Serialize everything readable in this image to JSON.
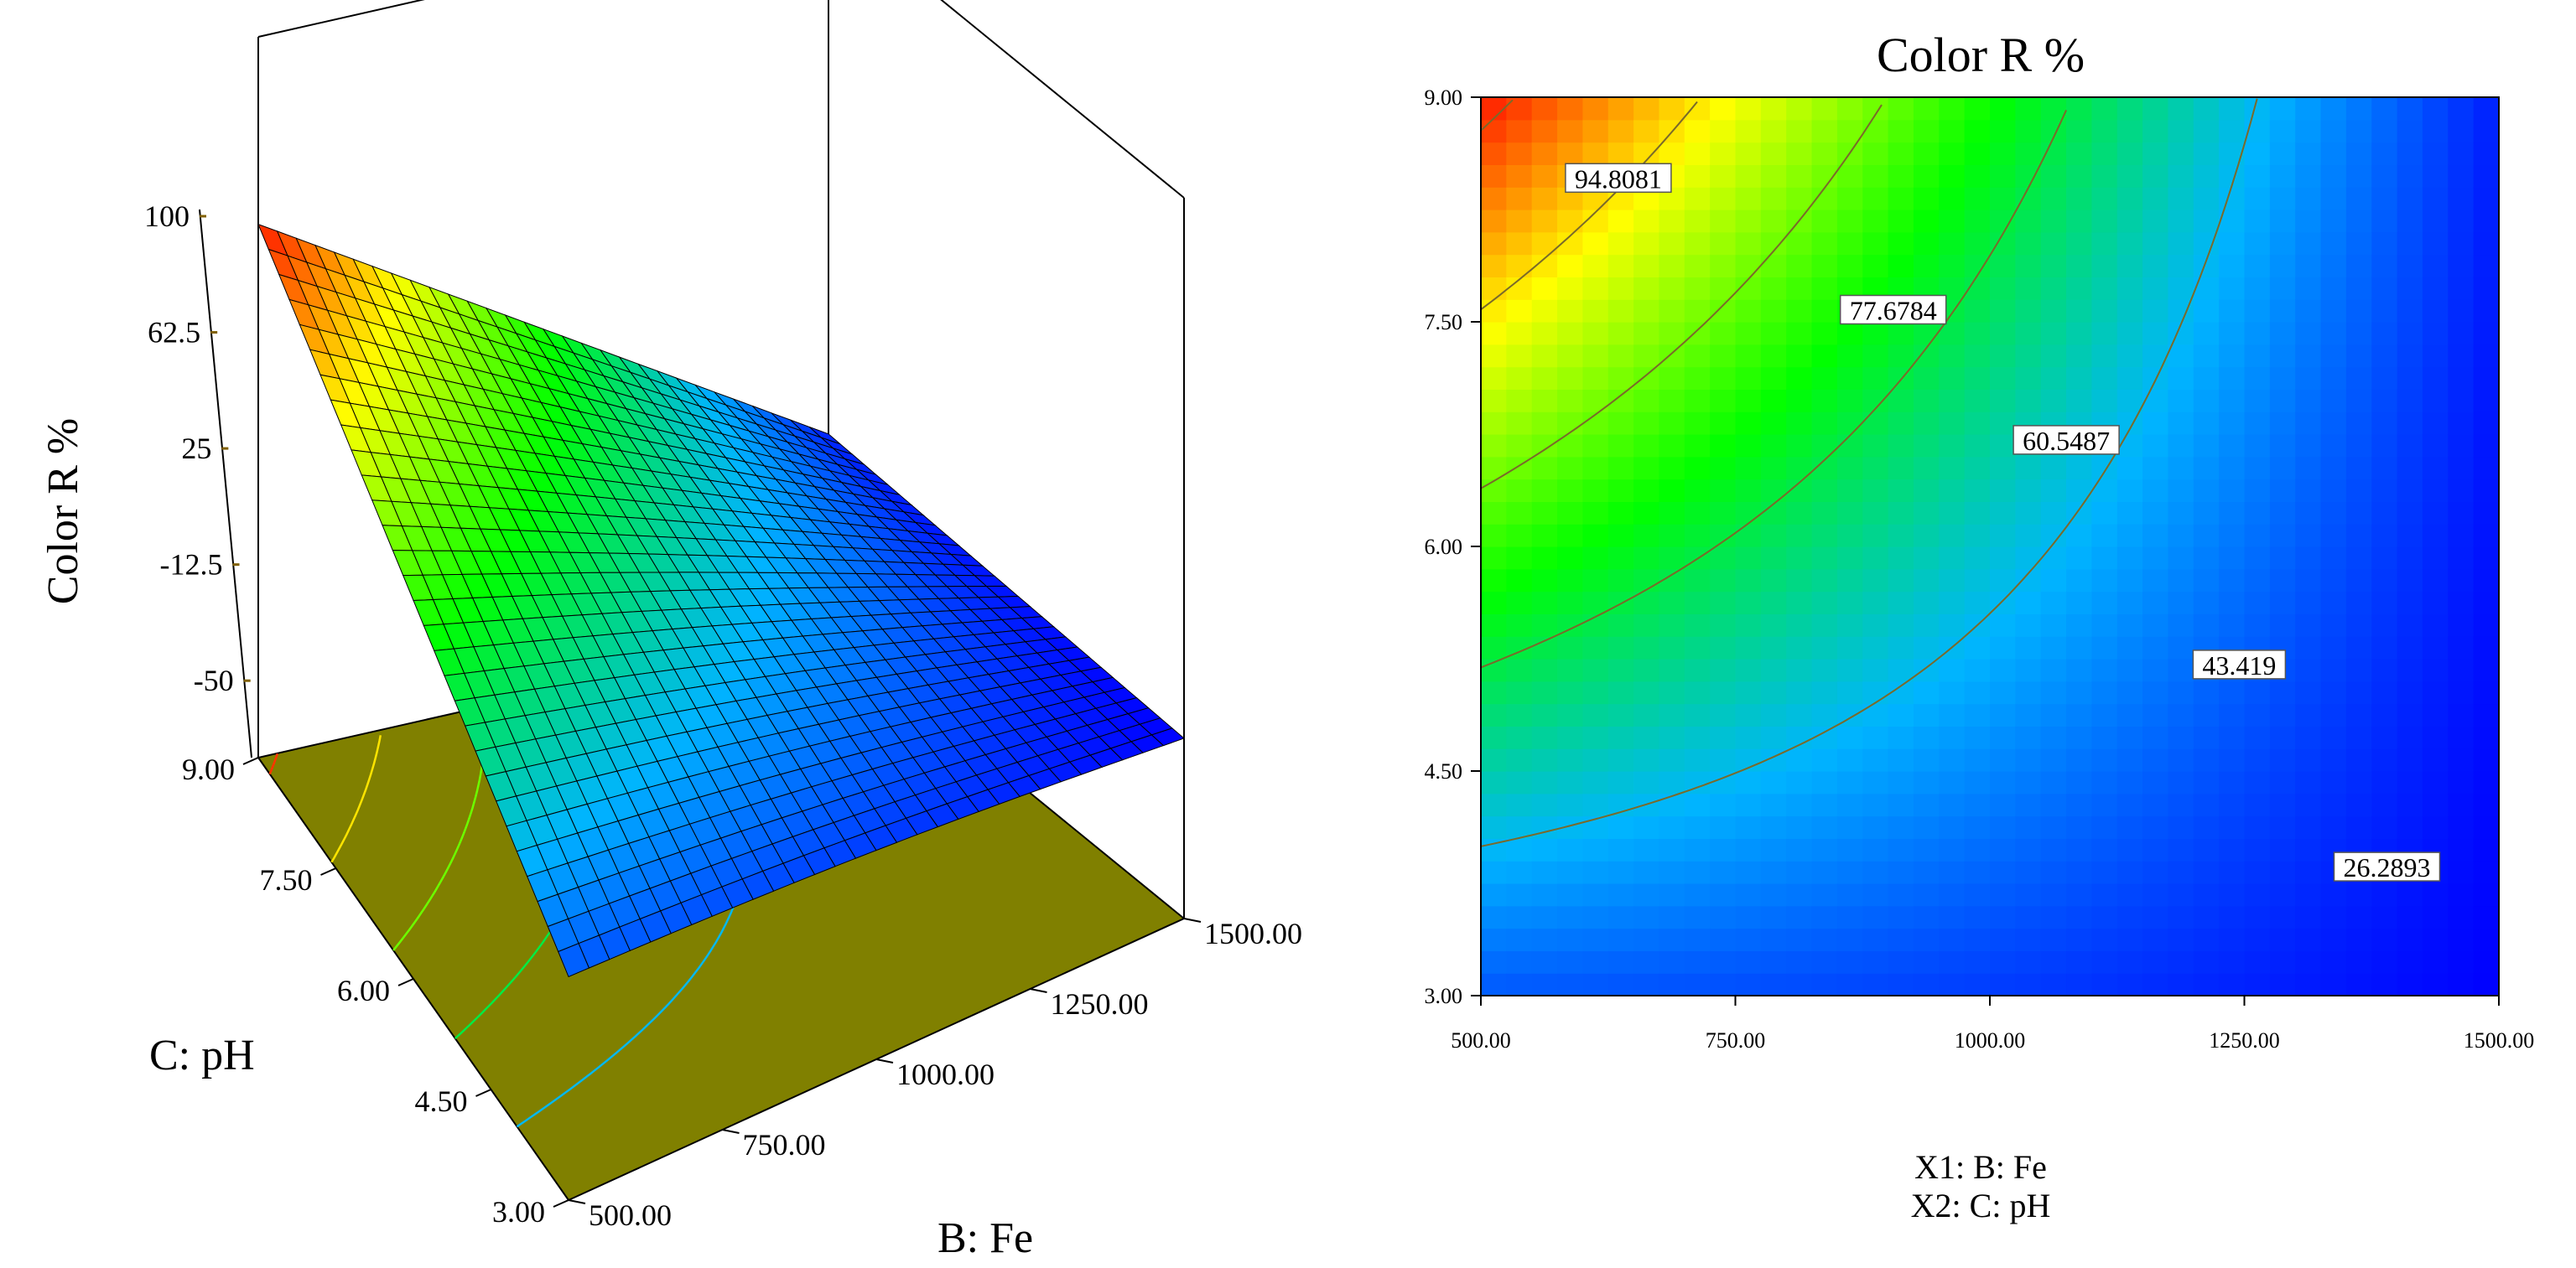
{
  "chart_data": [
    {
      "type": "surface",
      "zlabel": "Color R %",
      "xlabel": "B: Fe",
      "ylabel": "C: pH",
      "x_ticks": [
        "500.00",
        "750.00",
        "1000.00",
        "1250.00",
        "1500.00"
      ],
      "y_ticks": [
        "3.00",
        "4.50",
        "6.00",
        "7.50",
        "9.00"
      ],
      "z_ticks": [
        "-50",
        "-12.5",
        "25",
        "62.5",
        "100"
      ],
      "xlim": [
        500,
        1500
      ],
      "ylim": [
        3,
        9
      ],
      "zlim": [
        -50,
        100
      ],
      "colormap": [
        "#0000ff",
        "#00b4ff",
        "#00ff00",
        "#ffff00",
        "#ff0000"
      ],
      "floor_color": "#808000",
      "surface_corners": [
        {
          "x": 500,
          "y": 3,
          "z": 12
        },
        {
          "x": 1500,
          "y": 3,
          "z": 2
        },
        {
          "x": 500,
          "y": 9,
          "z": 98
        },
        {
          "x": 1500,
          "y": 9,
          "z": 5
        }
      ]
    },
    {
      "type": "contour",
      "title": "Color R %",
      "xlabel": "X1: B: Fe",
      "ylabel": "X2: C: pH",
      "x_ticks": [
        "500.00",
        "750.00",
        "1000.00",
        "1250.00",
        "1500.00"
      ],
      "y_ticks": [
        "3.00",
        "4.50",
        "6.00",
        "7.50",
        "9.00"
      ],
      "xlim": [
        500,
        1500
      ],
      "ylim": [
        3,
        9
      ],
      "contour_levels": [
        {
          "label": "94.8081",
          "value": 94.8081,
          "label_at": [
            635,
            8.45
          ]
        },
        {
          "label": "77.6784",
          "value": 77.6784,
          "label_at": [
            905,
            7.57
          ]
        },
        {
          "label": "60.5487",
          "value": 60.5487,
          "label_at": [
            1075,
            6.7
          ]
        },
        {
          "label": "43.419",
          "value": 43.419,
          "label_at": [
            1245,
            5.2
          ]
        },
        {
          "label": "26.2893",
          "value": 26.2893,
          "label_at": [
            1390,
            3.85
          ]
        }
      ]
    }
  ]
}
